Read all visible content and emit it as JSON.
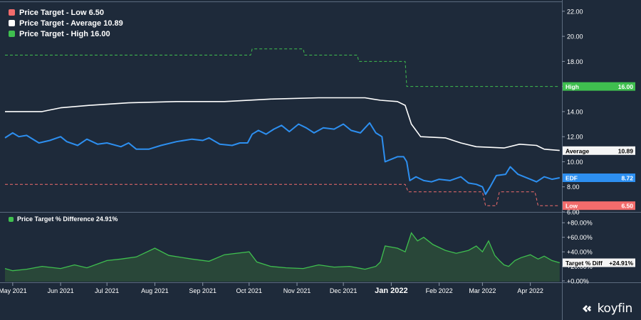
{
  "brand": {
    "name": "koyfin",
    "icon": "koyfin-logo-icon"
  },
  "chart_data": [
    {
      "type": "line",
      "grid": false,
      "legend_position": "top-left",
      "xlabel": "",
      "ylabel": "",
      "ylim": [
        6.0,
        22.5
      ],
      "yticks": [
        "6.00",
        "8.00",
        "10.00",
        "12.00",
        "14.00",
        "16.00",
        "18.00",
        "20.00",
        "22.00"
      ],
      "x_ticks": [
        "May 2021",
        "Jun 2021",
        "Jul 2021",
        "Aug 2021",
        "Sep 2021",
        "Oct 2021",
        "Nov 2021",
        "Dec 2021",
        "Jan 2022",
        "Feb 2022",
        "Mar 2022",
        "Apr 2022"
      ],
      "legend": [
        {
          "label": "Price Target - Low 6.50",
          "color": "#f26c6c"
        },
        {
          "label": "Price Target - Average 10.89",
          "color": "#ffffff"
        },
        {
          "label": "Price Target - High 16.00",
          "color": "#3fbf4f"
        }
      ],
      "series": [
        {
          "name": "Price Target - High",
          "color": "#3fbf4f",
          "style": "dashed",
          "points": [
            [
              "2021-04-26",
              18.5
            ],
            [
              "2021-10-02",
              18.5
            ],
            [
              "2021-10-03",
              19.0
            ],
            [
              "2021-11-05",
              19.0
            ],
            [
              "2021-11-06",
              18.5
            ],
            [
              "2021-12-10",
              18.5
            ],
            [
              "2021-12-11",
              18.0
            ],
            [
              "2022-01-10",
              18.0
            ],
            [
              "2022-01-11",
              16.0
            ],
            [
              "2022-04-20",
              16.0
            ]
          ]
        },
        {
          "name": "Price Target - Average",
          "color": "#ffffff",
          "style": "solid",
          "points": [
            [
              "2021-04-26",
              14.0
            ],
            [
              "2021-05-20",
              14.0
            ],
            [
              "2021-06-01",
              14.3
            ],
            [
              "2021-06-20",
              14.5
            ],
            [
              "2021-07-15",
              14.7
            ],
            [
              "2021-08-15",
              14.8
            ],
            [
              "2021-09-15",
              14.8
            ],
            [
              "2021-10-15",
              15.0
            ],
            [
              "2021-11-15",
              15.1
            ],
            [
              "2021-12-15",
              15.1
            ],
            [
              "2021-12-20",
              15.0
            ],
            [
              "2021-12-25",
              14.9
            ],
            [
              "2022-01-05",
              14.8
            ],
            [
              "2022-01-10",
              14.5
            ],
            [
              "2022-01-14",
              13.0
            ],
            [
              "2022-01-20",
              12.0
            ],
            [
              "2022-02-05",
              11.9
            ],
            [
              "2022-02-15",
              11.5
            ],
            [
              "2022-02-25",
              11.2
            ],
            [
              "2022-03-15",
              11.1
            ],
            [
              "2022-03-25",
              11.4
            ],
            [
              "2022-04-05",
              11.3
            ],
            [
              "2022-04-10",
              11.0
            ],
            [
              "2022-04-20",
              10.9
            ]
          ]
        },
        {
          "name": "Price Target - Low",
          "color": "#f26c6c",
          "style": "dashed",
          "points": [
            [
              "2021-04-26",
              8.2
            ],
            [
              "2022-01-10",
              8.2
            ],
            [
              "2022-01-12",
              7.6
            ],
            [
              "2022-03-01",
              7.6
            ],
            [
              "2022-03-03",
              6.5
            ],
            [
              "2022-03-10",
              6.5
            ],
            [
              "2022-03-12",
              7.6
            ],
            [
              "2022-04-04",
              7.6
            ],
            [
              "2022-04-06",
              6.5
            ],
            [
              "2022-04-20",
              6.5
            ]
          ]
        },
        {
          "name": "EDF",
          "color": "#2d8ff0",
          "style": "solid",
          "points": [
            [
              "2021-04-26",
              11.9
            ],
            [
              "2021-05-01",
              12.3
            ],
            [
              "2021-05-05",
              12.0
            ],
            [
              "2021-05-10",
              12.1
            ],
            [
              "2021-05-18",
              11.5
            ],
            [
              "2021-05-25",
              11.7
            ],
            [
              "2021-06-01",
              12.0
            ],
            [
              "2021-06-05",
              11.6
            ],
            [
              "2021-06-12",
              11.3
            ],
            [
              "2021-06-18",
              11.8
            ],
            [
              "2021-06-25",
              11.4
            ],
            [
              "2021-07-01",
              11.5
            ],
            [
              "2021-07-10",
              11.2
            ],
            [
              "2021-07-15",
              11.5
            ],
            [
              "2021-07-20",
              11.0
            ],
            [
              "2021-07-28",
              11.0
            ],
            [
              "2021-08-05",
              11.3
            ],
            [
              "2021-08-15",
              11.6
            ],
            [
              "2021-08-25",
              11.8
            ],
            [
              "2021-09-01",
              11.7
            ],
            [
              "2021-09-05",
              11.9
            ],
            [
              "2021-09-12",
              11.4
            ],
            [
              "2021-09-20",
              11.3
            ],
            [
              "2021-09-25",
              11.5
            ],
            [
              "2021-09-30",
              11.5
            ],
            [
              "2021-10-03",
              12.2
            ],
            [
              "2021-10-07",
              12.5
            ],
            [
              "2021-10-12",
              12.2
            ],
            [
              "2021-10-17",
              12.6
            ],
            [
              "2021-10-22",
              12.9
            ],
            [
              "2021-10-27",
              12.4
            ],
            [
              "2021-11-02",
              13.0
            ],
            [
              "2021-11-07",
              12.7
            ],
            [
              "2021-11-12",
              12.3
            ],
            [
              "2021-11-18",
              12.7
            ],
            [
              "2021-11-25",
              12.6
            ],
            [
              "2021-12-01",
              13.0
            ],
            [
              "2021-12-06",
              12.5
            ],
            [
              "2021-12-12",
              12.3
            ],
            [
              "2021-12-18",
              13.1
            ],
            [
              "2021-12-22",
              12.3
            ],
            [
              "2021-12-26",
              12.0
            ],
            [
              "2021-12-28",
              10.0
            ],
            [
              "2022-01-01",
              10.2
            ],
            [
              "2022-01-05",
              10.4
            ],
            [
              "2022-01-09",
              10.4
            ],
            [
              "2022-01-11",
              10.0
            ],
            [
              "2022-01-13",
              8.5
            ],
            [
              "2022-01-17",
              8.8
            ],
            [
              "2022-01-22",
              8.5
            ],
            [
              "2022-01-27",
              8.4
            ],
            [
              "2022-02-01",
              8.6
            ],
            [
              "2022-02-08",
              8.5
            ],
            [
              "2022-02-15",
              8.8
            ],
            [
              "2022-02-20",
              8.3
            ],
            [
              "2022-02-25",
              8.2
            ],
            [
              "2022-03-01",
              8.0
            ],
            [
              "2022-03-03",
              7.4
            ],
            [
              "2022-03-06",
              8.0
            ],
            [
              "2022-03-10",
              8.9
            ],
            [
              "2022-03-16",
              9.0
            ],
            [
              "2022-03-19",
              9.6
            ],
            [
              "2022-03-24",
              9.0
            ],
            [
              "2022-03-28",
              8.8
            ],
            [
              "2022-04-01",
              8.6
            ],
            [
              "2022-04-05",
              8.4
            ],
            [
              "2022-04-10",
              8.8
            ],
            [
              "2022-04-15",
              8.6
            ],
            [
              "2022-04-20",
              8.72
            ]
          ]
        }
      ],
      "end_labels": [
        {
          "label": "High",
          "value_text": "16.00",
          "value": 16.0,
          "bg": "#3fbf4f",
          "fg": "#ffffff"
        },
        {
          "label": "Average",
          "value_text": "10.89",
          "value": 10.89,
          "bg": "#f5f5f5",
          "fg": "#000000"
        },
        {
          "label": "EDF",
          "value_text": "8.72",
          "value": 8.72,
          "bg": "#2d8ff0",
          "fg": "#ffffff"
        },
        {
          "label": "Low",
          "value_text": "6.50",
          "value": 6.5,
          "bg": "#f26c6c",
          "fg": "#ffffff"
        }
      ]
    },
    {
      "type": "area",
      "grid": false,
      "legend_position": "top-left",
      "ylim": [
        0,
        90
      ],
      "yticks": [
        "+0.00%",
        "+20.00%",
        "+40.00%",
        "+60.00%",
        "+80.00%"
      ],
      "legend": [
        {
          "label": "Price Target % Difference 24.91%",
          "color": "#3fbf4f"
        }
      ],
      "series": [
        {
          "name": "Price Target % Difference",
          "color": "#3fbf4f",
          "points": [
            [
              "2021-04-26",
              17
            ],
            [
              "2021-05-01",
              14
            ],
            [
              "2021-05-10",
              16
            ],
            [
              "2021-05-20",
              20
            ],
            [
              "2021-06-01",
              17
            ],
            [
              "2021-06-10",
              22
            ],
            [
              "2021-06-18",
              18
            ],
            [
              "2021-07-01",
              28
            ],
            [
              "2021-07-10",
              30
            ],
            [
              "2021-07-20",
              33
            ],
            [
              "2021-08-01",
              45
            ],
            [
              "2021-08-10",
              35
            ],
            [
              "2021-08-25",
              30
            ],
            [
              "2021-09-05",
              27
            ],
            [
              "2021-09-15",
              36
            ],
            [
              "2021-10-01",
              40
            ],
            [
              "2021-10-06",
              26
            ],
            [
              "2021-10-15",
              20
            ],
            [
              "2021-10-25",
              18
            ],
            [
              "2021-11-05",
              17
            ],
            [
              "2021-11-15",
              22
            ],
            [
              "2021-11-25",
              19
            ],
            [
              "2021-12-05",
              20
            ],
            [
              "2021-12-15",
              16
            ],
            [
              "2021-12-22",
              20
            ],
            [
              "2021-12-25",
              26
            ],
            [
              "2021-12-28",
              48
            ],
            [
              "2022-01-05",
              45
            ],
            [
              "2022-01-10",
              40
            ],
            [
              "2022-01-14",
              66
            ],
            [
              "2022-01-18",
              55
            ],
            [
              "2022-01-22",
              60
            ],
            [
              "2022-01-28",
              50
            ],
            [
              "2022-02-05",
              42
            ],
            [
              "2022-02-12",
              38
            ],
            [
              "2022-02-20",
              42
            ],
            [
              "2022-02-25",
              48
            ],
            [
              "2022-03-01",
              40
            ],
            [
              "2022-03-05",
              55
            ],
            [
              "2022-03-09",
              35
            ],
            [
              "2022-03-12",
              28
            ],
            [
              "2022-03-15",
              22
            ],
            [
              "2022-03-18",
              20
            ],
            [
              "2022-03-22",
              28
            ],
            [
              "2022-03-26",
              32
            ],
            [
              "2022-04-01",
              36
            ],
            [
              "2022-04-06",
              30
            ],
            [
              "2022-04-10",
              34
            ],
            [
              "2022-04-15",
              28
            ],
            [
              "2022-04-20",
              24.91
            ]
          ]
        }
      ],
      "end_labels": [
        {
          "label": "Target % Diff",
          "value_text": "+24.91%",
          "value": 24.91,
          "bg": "#f5f5f5",
          "fg": "#000000"
        }
      ]
    }
  ],
  "highlighted_tick": "Jan 2022"
}
